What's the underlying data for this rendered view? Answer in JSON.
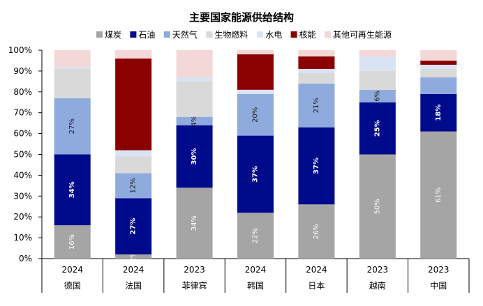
{
  "chart_data": {
    "type": "bar",
    "stacked": true,
    "percent": true,
    "title": "主要国家能源供给结构",
    "categories": [
      "德国",
      "法国",
      "菲律宾",
      "韩国",
      "日本",
      "越南",
      "中国"
    ],
    "years": [
      "2024",
      "2024",
      "2023",
      "2024",
      "2024",
      "2023",
      "2023"
    ],
    "ylim": [
      0,
      100
    ],
    "yticks": [
      "0%",
      "10%",
      "20%",
      "30%",
      "40%",
      "50%",
      "60%",
      "70%",
      "80%",
      "90%",
      "100%"
    ],
    "legend_position": "top",
    "series": [
      {
        "name": "煤炭",
        "color": "#a5a5a5",
        "label_color": "#ffffff",
        "values": [
          16,
          2,
          34,
          22,
          26,
          50,
          61
        ],
        "labels": [
          "16%",
          "2%",
          "34%",
          "22%",
          "26%",
          "50%",
          "61%"
        ]
      },
      {
        "name": "石油",
        "color": "#000b8c",
        "label_color": "#ffffff",
        "values": [
          34,
          27,
          30,
          37,
          37,
          25,
          18
        ],
        "labels": [
          "34%",
          "27%",
          "30%",
          "37%",
          "37%",
          "25%",
          "18%"
        ]
      },
      {
        "name": "天然气",
        "color": "#8faadc",
        "label_color": "#1a1a1a",
        "values": [
          27,
          12,
          4,
          20,
          21,
          6,
          8
        ],
        "labels": [
          "27%",
          "12%",
          "4%",
          "20%",
          "21%",
          "6%",
          ""
        ]
      },
      {
        "name": "生物燃料",
        "color": "#d9d9d9",
        "label_color": "#1a1a1a",
        "values": [
          14,
          8,
          17,
          0,
          5,
          9,
          4
        ],
        "labels": [
          "",
          "",
          "",
          "",
          "",
          "",
          ""
        ]
      },
      {
        "name": "水电",
        "color": "#dae3f3",
        "label_color": "#1a1a1a",
        "values": [
          1,
          3,
          2,
          2,
          2,
          7,
          2
        ],
        "labels": [
          "",
          "",
          "",
          "",
          "",
          "",
          ""
        ]
      },
      {
        "name": "核能",
        "color": "#8b0000",
        "label_color": "#ffffff",
        "values": [
          0,
          44,
          0,
          17,
          6,
          0,
          2
        ],
        "labels": [
          "",
          "",
          "",
          "",
          "",
          "",
          ""
        ]
      },
      {
        "name": "其他可再生能源",
        "color": "#f4d7d7",
        "label_color": "#1a1a1a",
        "values": [
          8,
          4,
          13,
          2,
          3,
          3,
          5
        ],
        "labels": [
          "",
          "",
          "",
          "",
          "",
          "",
          ""
        ]
      }
    ]
  }
}
